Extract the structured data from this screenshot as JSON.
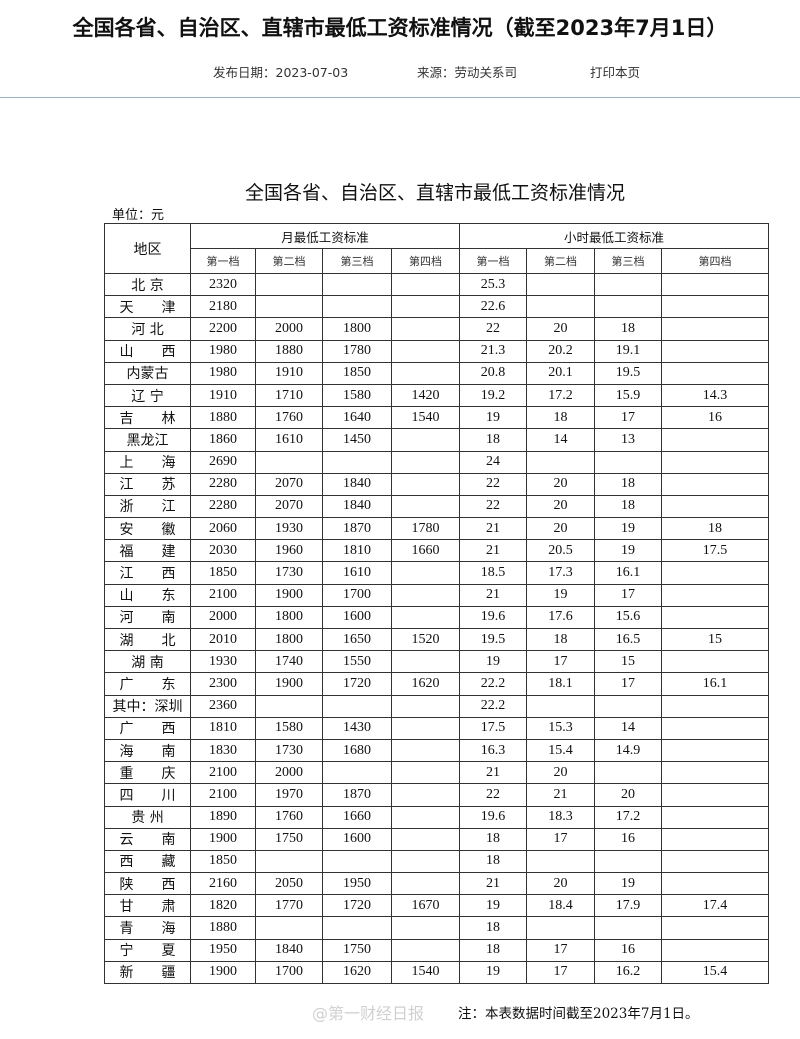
{
  "header": {
    "title": "全国各省、自治区、直辖市最低工资标准情况（截至2023年7月1日）",
    "publish_date": "发布日期：2023-07-03",
    "source": "来源：劳动关系司",
    "print_label": "打印本页"
  },
  "table": {
    "title": "全国各省、自治区、直辖市最低工资标准情况",
    "unit": "单位：元",
    "region_header": "地区",
    "monthly_header": "月最低工资标准",
    "hourly_header": "小时最低工资标准",
    "tiers": [
      "第一档",
      "第二档",
      "第三档",
      "第四档"
    ],
    "rows": [
      [
        "北 京",
        "2320",
        "",
        "",
        "",
        "25.3",
        "",
        "",
        ""
      ],
      [
        "天　　津",
        "2180",
        "",
        "",
        "",
        "22.6",
        "",
        "",
        ""
      ],
      [
        "河 北",
        "2200",
        "2000",
        "1800",
        "",
        "22",
        "20",
        "18",
        ""
      ],
      [
        "山　　西",
        "1980",
        "1880",
        "1780",
        "",
        "21.3",
        "20.2",
        "19.1",
        ""
      ],
      [
        "内蒙古",
        "1980",
        "1910",
        "1850",
        "",
        "20.8",
        "20.1",
        "19.5",
        ""
      ],
      [
        "辽 宁",
        "1910",
        "1710",
        "1580",
        "1420",
        "19.2",
        "17.2",
        "15.9",
        "14.3"
      ],
      [
        "吉　　林",
        "1880",
        "1760",
        "1640",
        "1540",
        "19",
        "18",
        "17",
        "16"
      ],
      [
        "黑龙江",
        "1860",
        "1610",
        "1450",
        "",
        "18",
        "14",
        "13",
        ""
      ],
      [
        "上　　海",
        "2690",
        "",
        "",
        "",
        "24",
        "",
        "",
        ""
      ],
      [
        "江　　苏",
        "2280",
        "2070",
        "1840",
        "",
        "22",
        "20",
        "18",
        ""
      ],
      [
        "浙　　江",
        "2280",
        "2070",
        "1840",
        "",
        "22",
        "20",
        "18",
        ""
      ],
      [
        "安　　徽",
        "2060",
        "1930",
        "1870",
        "1780",
        "21",
        "20",
        "19",
        "18"
      ],
      [
        "福　　建",
        "2030",
        "1960",
        "1810",
        "1660",
        "21",
        "20.5",
        "19",
        "17.5"
      ],
      [
        "江　　西",
        "1850",
        "1730",
        "1610",
        "",
        "18.5",
        "17.3",
        "16.1",
        ""
      ],
      [
        "山　　东",
        "2100",
        "1900",
        "1700",
        "",
        "21",
        "19",
        "17",
        ""
      ],
      [
        "河　　南",
        "2000",
        "1800",
        "1600",
        "",
        "19.6",
        "17.6",
        "15.6",
        ""
      ],
      [
        "湖　　北",
        "2010",
        "1800",
        "1650",
        "1520",
        "19.5",
        "18",
        "16.5",
        "15"
      ],
      [
        "湖 南",
        "1930",
        "1740",
        "1550",
        "",
        "19",
        "17",
        "15",
        ""
      ],
      [
        "广　　东",
        "2300",
        "1900",
        "1720",
        "1620",
        "22.2",
        "18.1",
        "17",
        "16.1"
      ],
      [
        "其中：深圳",
        "2360",
        "",
        "",
        "",
        "22.2",
        "",
        "",
        ""
      ],
      [
        "广　　西",
        "1810",
        "1580",
        "1430",
        "",
        "17.5",
        "15.3",
        "14",
        ""
      ],
      [
        "海　　南",
        "1830",
        "1730",
        "1680",
        "",
        "16.3",
        "15.4",
        "14.9",
        ""
      ],
      [
        "重　　庆",
        "2100",
        "2000",
        "",
        "",
        "21",
        "20",
        "",
        ""
      ],
      [
        "四　　川",
        "2100",
        "1970",
        "1870",
        "",
        "22",
        "21",
        "20",
        ""
      ],
      [
        "贵 州",
        "1890",
        "1760",
        "1660",
        "",
        "19.6",
        "18.3",
        "17.2",
        ""
      ],
      [
        "云　　南",
        "1900",
        "1750",
        "1600",
        "",
        "18",
        "17",
        "16",
        ""
      ],
      [
        "西　　藏",
        "1850",
        "",
        "",
        "",
        "18",
        "",
        "",
        ""
      ],
      [
        "陕　　西",
        "2160",
        "2050",
        "1950",
        "",
        "21",
        "20",
        "19",
        ""
      ],
      [
        "甘　　肃",
        "1820",
        "1770",
        "1720",
        "1670",
        "19",
        "18.4",
        "17.9",
        "17.4"
      ],
      [
        "青　　海",
        "1880",
        "",
        "",
        "",
        "18",
        "",
        "",
        ""
      ],
      [
        "宁　　夏",
        "1950",
        "1840",
        "1750",
        "",
        "18",
        "17",
        "16",
        ""
      ],
      [
        "新　　疆",
        "1900",
        "1700",
        "1620",
        "1540",
        "19",
        "17",
        "16.2",
        "15.4"
      ]
    ],
    "note": "注：本表数据时间截至2023年7月1日。"
  },
  "watermark": "@第一财经日报"
}
